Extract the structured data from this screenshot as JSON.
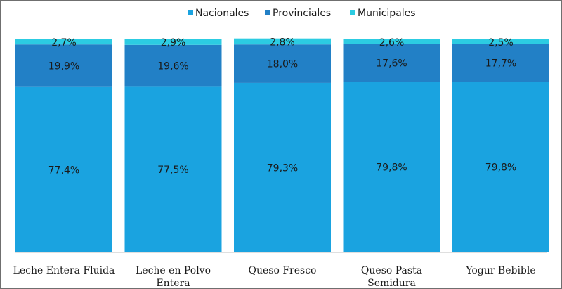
{
  "chart_data": {
    "type": "bar",
    "stacked": true,
    "percent": true,
    "categories": [
      [
        "Leche Entera Fluida"
      ],
      [
        "Leche en Polvo",
        "Entera"
      ],
      [
        "Queso Fresco"
      ],
      [
        "Queso Pasta",
        "Semidura"
      ],
      [
        "Yogur Bebible"
      ]
    ],
    "series": [
      {
        "name": "Nacionales",
        "color": "#1aa3e0",
        "values": [
          77.4,
          77.5,
          79.3,
          79.8,
          79.8
        ],
        "labels": [
          "77,4%",
          "77,5%",
          "79,3%",
          "79,8%",
          "79,8%"
        ]
      },
      {
        "name": "Provinciales",
        "color": "#2280c6",
        "values": [
          19.9,
          19.6,
          18.0,
          17.6,
          17.7
        ],
        "labels": [
          "19,9%",
          "19,6%",
          "18,0%",
          "17,6%",
          "17,7%"
        ]
      },
      {
        "name": "Municipales",
        "color": "#2ccce2",
        "values": [
          2.7,
          2.9,
          2.8,
          2.6,
          2.5
        ],
        "labels": [
          "2,7%",
          "2,9%",
          "2,8%",
          "2,6%",
          "2,5%"
        ]
      }
    ],
    "ylim": [
      0,
      100
    ],
    "grid": false,
    "legend_position": "top-center"
  }
}
